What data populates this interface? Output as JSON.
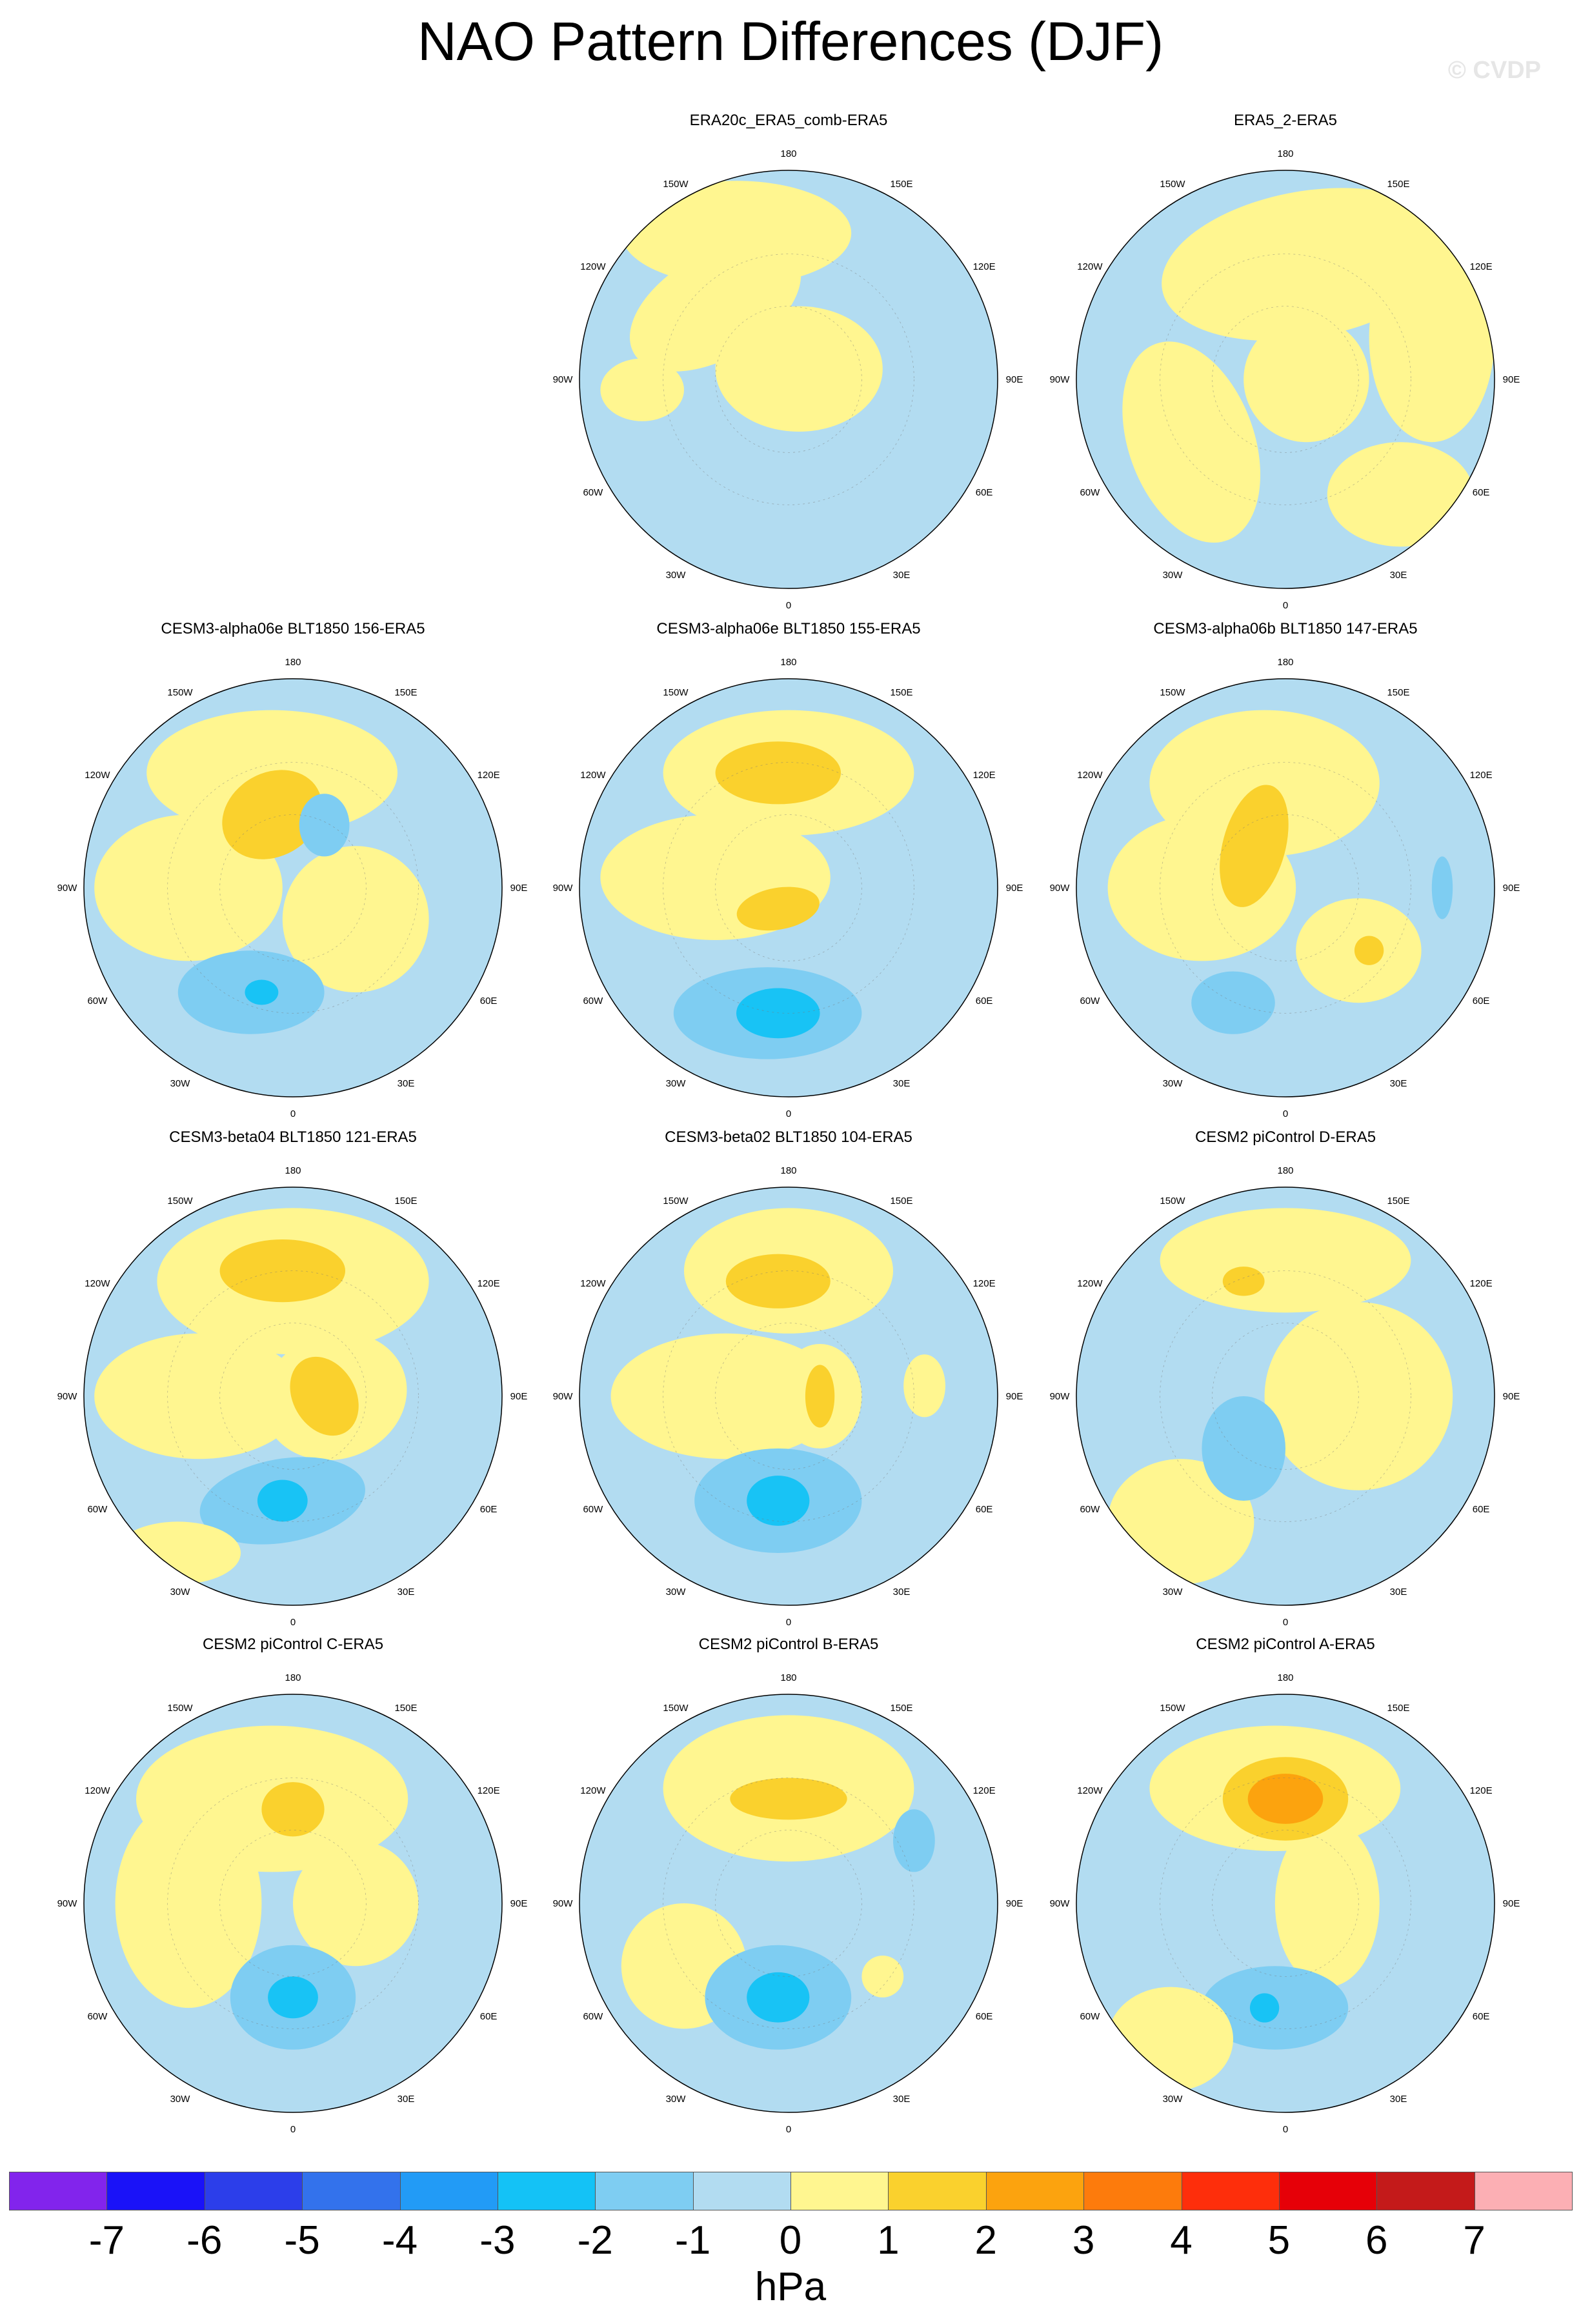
{
  "title": "NAO Pattern Differences (DJF)",
  "watermark": "© CVDP",
  "lon_labels": [
    "180",
    "150E",
    "120E",
    "90E",
    "60E",
    "30E",
    "0",
    "30W",
    "60W",
    "90W",
    "120W",
    "150W"
  ],
  "panels": [
    {
      "title": "ERA20c_ERA5_comb-ERA5",
      "row": 0,
      "col": 1,
      "blobs": [
        [
          "#fff690",
          -0.25,
          0.7,
          0.55,
          0.25,
          0
        ],
        [
          "#fff690",
          -0.35,
          0.35,
          0.45,
          0.25,
          -30
        ],
        [
          "#fff690",
          0.05,
          0.05,
          0.4,
          0.3,
          0
        ],
        [
          "#fff690",
          -0.7,
          -0.05,
          0.2,
          0.15,
          0
        ]
      ]
    },
    {
      "title": "ERA5_2-ERA5",
      "row": 0,
      "col": 2,
      "blobs": [
        [
          "#fff690",
          0.1,
          0.55,
          0.7,
          0.35,
          -10
        ],
        [
          "#fff690",
          0.7,
          0.2,
          0.3,
          0.5,
          0
        ],
        [
          "#fff690",
          -0.45,
          -0.3,
          0.3,
          0.5,
          -20
        ],
        [
          "#fff690",
          0.1,
          0.0,
          0.3,
          0.3,
          0
        ],
        [
          "#fff690",
          0.55,
          -0.55,
          0.35,
          0.25,
          0
        ]
      ]
    },
    {
      "title": "CESM3-alpha06e BLT1850 156-ERA5",
      "row": 1,
      "col": 0,
      "blobs": [
        [
          "#fff690",
          -0.1,
          0.55,
          0.6,
          0.3,
          0
        ],
        [
          "#fff690",
          -0.5,
          0.0,
          0.45,
          0.35,
          0
        ],
        [
          "#fff690",
          0.3,
          -0.15,
          0.35,
          0.35,
          0
        ],
        [
          "#fad12d",
          -0.1,
          0.35,
          0.25,
          0.2,
          -30
        ],
        [
          "#7ecdf2",
          -0.2,
          -0.5,
          0.35,
          0.2,
          0
        ],
        [
          "#18c3f5",
          -0.15,
          -0.5,
          0.08,
          0.06,
          0
        ],
        [
          "#7ecdf2",
          0.15,
          0.3,
          0.12,
          0.15,
          0
        ]
      ]
    },
    {
      "title": "CESM3-alpha06e BLT1850 155-ERA5",
      "row": 1,
      "col": 1,
      "blobs": [
        [
          "#fff690",
          0.0,
          0.55,
          0.6,
          0.3,
          0
        ],
        [
          "#fff690",
          -0.35,
          0.05,
          0.55,
          0.3,
          0
        ],
        [
          "#fad12d",
          -0.05,
          0.55,
          0.3,
          0.15,
          0
        ],
        [
          "#fad12d",
          -0.05,
          -0.1,
          0.2,
          0.1,
          -10
        ],
        [
          "#7ecdf2",
          -0.1,
          -0.6,
          0.45,
          0.22,
          0
        ],
        [
          "#18c3f5",
          -0.05,
          -0.6,
          0.2,
          0.12,
          0
        ]
      ]
    },
    {
      "title": "CESM3-alpha06b BLT1850 147-ERA5",
      "row": 1,
      "col": 2,
      "blobs": [
        [
          "#fff690",
          -0.1,
          0.5,
          0.55,
          0.35,
          0
        ],
        [
          "#fff690",
          -0.4,
          0.0,
          0.45,
          0.35,
          0
        ],
        [
          "#fff690",
          0.35,
          -0.3,
          0.3,
          0.25,
          0
        ],
        [
          "#fad12d",
          -0.15,
          0.2,
          0.15,
          0.3,
          15
        ],
        [
          "#fad12d",
          0.4,
          -0.3,
          0.07,
          0.07,
          0
        ],
        [
          "#7ecdf2",
          -0.25,
          -0.55,
          0.2,
          0.15,
          0
        ],
        [
          "#7ecdf2",
          0.75,
          0.0,
          0.05,
          0.15,
          0
        ]
      ]
    },
    {
      "title": "CESM3-beta04 BLT1850 121-ERA5",
      "row": 2,
      "col": 0,
      "blobs": [
        [
          "#fff690",
          0.0,
          0.55,
          0.65,
          0.35,
          0
        ],
        [
          "#fff690",
          -0.45,
          0.0,
          0.5,
          0.3,
          0
        ],
        [
          "#fff690",
          0.2,
          0.0,
          0.35,
          0.3,
          -20
        ],
        [
          "#fad12d",
          -0.05,
          0.6,
          0.3,
          0.15,
          0
        ],
        [
          "#fad12d",
          0.15,
          0.0,
          0.15,
          0.2,
          -30
        ],
        [
          "#7ecdf2",
          -0.05,
          -0.5,
          0.4,
          0.2,
          -10
        ],
        [
          "#18c3f5",
          -0.05,
          -0.5,
          0.12,
          0.1,
          0
        ],
        [
          "#fff690",
          -0.55,
          -0.75,
          0.3,
          0.15,
          0
        ]
      ]
    },
    {
      "title": "CESM3-beta02 BLT1850 104-ERA5",
      "row": 2,
      "col": 1,
      "blobs": [
        [
          "#fff690",
          0.0,
          0.6,
          0.5,
          0.3,
          0
        ],
        [
          "#fff690",
          -0.3,
          0.0,
          0.55,
          0.3,
          0
        ],
        [
          "#fff690",
          0.15,
          0.0,
          0.2,
          0.25,
          0
        ],
        [
          "#fad12d",
          -0.05,
          0.55,
          0.25,
          0.13,
          0
        ],
        [
          "#fad12d",
          0.15,
          0.0,
          0.07,
          0.15,
          0
        ],
        [
          "#7ecdf2",
          -0.05,
          -0.5,
          0.4,
          0.25,
          0
        ],
        [
          "#18c3f5",
          -0.05,
          -0.5,
          0.15,
          0.12,
          0
        ],
        [
          "#fff690",
          0.65,
          0.05,
          0.1,
          0.15,
          0
        ]
      ]
    },
    {
      "title": "CESM2 piControl D-ERA5",
      "row": 2,
      "col": 2,
      "blobs": [
        [
          "#fff690",
          0.0,
          0.65,
          0.6,
          0.25,
          0
        ],
        [
          "#fff690",
          0.35,
          0.0,
          0.45,
          0.45,
          0
        ],
        [
          "#fff690",
          -0.5,
          -0.6,
          0.35,
          0.3,
          0
        ],
        [
          "#fad12d",
          -0.2,
          0.55,
          0.1,
          0.07,
          0
        ],
        [
          "#7ecdf2",
          -0.2,
          -0.25,
          0.2,
          0.25,
          0
        ]
      ]
    },
    {
      "title": "CESM2 piControl C-ERA5",
      "row": 3,
      "col": 0,
      "blobs": [
        [
          "#fff690",
          -0.1,
          0.5,
          0.65,
          0.35,
          0
        ],
        [
          "#fff690",
          -0.5,
          0.0,
          0.35,
          0.5,
          0
        ],
        [
          "#fff690",
          0.3,
          0.0,
          0.3,
          0.3,
          0
        ],
        [
          "#fad12d",
          0.0,
          0.45,
          0.15,
          0.13,
          0
        ],
        [
          "#7ecdf2",
          0.0,
          -0.45,
          0.3,
          0.25,
          0
        ],
        [
          "#18c3f5",
          0.0,
          -0.45,
          0.12,
          0.1,
          0
        ]
      ]
    },
    {
      "title": "CESM2 piControl B-ERA5",
      "row": 3,
      "col": 1,
      "blobs": [
        [
          "#fff690",
          0.0,
          0.55,
          0.6,
          0.35,
          0
        ],
        [
          "#fff690",
          -0.5,
          -0.3,
          0.3,
          0.3,
          0
        ],
        [
          "#fad12d",
          0.0,
          0.5,
          0.28,
          0.1,
          0
        ],
        [
          "#7ecdf2",
          -0.05,
          -0.45,
          0.35,
          0.25,
          0
        ],
        [
          "#18c3f5",
          -0.05,
          -0.45,
          0.15,
          0.12,
          0
        ],
        [
          "#7ecdf2",
          0.6,
          0.3,
          0.1,
          0.15,
          0
        ],
        [
          "#fff690",
          0.45,
          -0.35,
          0.1,
          0.1,
          0
        ]
      ]
    },
    {
      "title": "CESM2 piControl A-ERA5",
      "row": 3,
      "col": 2,
      "blobs": [
        [
          "#fff690",
          -0.05,
          0.55,
          0.6,
          0.3,
          0
        ],
        [
          "#fff690",
          0.2,
          0.0,
          0.25,
          0.4,
          0
        ],
        [
          "#fad12d",
          0.0,
          0.5,
          0.3,
          0.2,
          0
        ],
        [
          "#fca30e",
          0.0,
          0.5,
          0.18,
          0.12,
          0
        ],
        [
          "#7ecdf2",
          -0.05,
          -0.5,
          0.35,
          0.2,
          0
        ],
        [
          "#18c3f5",
          -0.1,
          -0.5,
          0.07,
          0.07,
          0
        ],
        [
          "#fff690",
          -0.55,
          -0.65,
          0.3,
          0.25,
          0
        ]
      ]
    }
  ],
  "colorbar": {
    "colors": [
      "#8224ec",
      "#1a12f8",
      "#2c3eea",
      "#3372ec",
      "#229bf6",
      "#14c2f6",
      "#7ecdf2",
      "#b2dcf1",
      "#fff690",
      "#fad12d",
      "#fca30e",
      "#fd7b0c",
      "#fe2e0b",
      "#e60008",
      "#c41a1a",
      "#fcafb4"
    ],
    "ticks": [
      "-7",
      "-6",
      "-5",
      "-4",
      "-3",
      "-2",
      "-1",
      "0",
      "1",
      "2",
      "3",
      "4",
      "5",
      "6",
      "7"
    ],
    "unit": "hPa"
  }
}
